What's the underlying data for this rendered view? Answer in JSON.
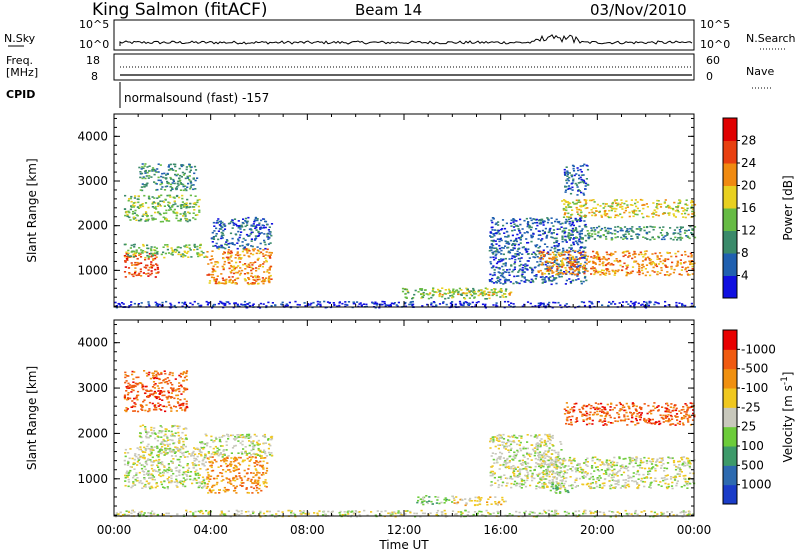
{
  "header": {
    "station": "King Salmon (fitACF)",
    "beam": "Beam 14",
    "date": "03/Nov/2010"
  },
  "noise_panel": {
    "left_label": "N.Sky",
    "right_label": "N.Search",
    "ticks": [
      "10^5",
      "10^0"
    ]
  },
  "freq_panel": {
    "left_label_1": "Freq.",
    "left_label_2": "[MHz]",
    "left_ticks": [
      "18",
      "8"
    ],
    "right_label": "Nave",
    "right_ticks": [
      "60",
      "0"
    ]
  },
  "cpid": {
    "label": "CPID",
    "program": "normalsound (fast) -157"
  },
  "chart_data": [
    {
      "type": "heatmap",
      "title": "",
      "ylabel": "Slant Range [km]",
      "ylim": [
        180,
        4500
      ],
      "yticks": [
        1000,
        2000,
        3000,
        4000
      ],
      "xlim": [
        0,
        24
      ],
      "colorbar_label": "Power [dB]",
      "colorbar_ticks": [
        "4",
        "8",
        "12",
        "16",
        "20",
        "24",
        "28"
      ],
      "colorbar_colors": [
        "#1010e0",
        "#2060b0",
        "#3a8a6a",
        "#66bb44",
        "#e8d020",
        "#f08a10",
        "#e84010",
        "#e00000"
      ],
      "scatter_regions": [
        {
          "t0": 0.4,
          "t1": 1.8,
          "r0": 850,
          "r1": 1400,
          "level": 6
        },
        {
          "t0": 0.4,
          "t1": 3.8,
          "r0": 1300,
          "r1": 1600,
          "level": 3
        },
        {
          "t0": 0.4,
          "t1": 3.5,
          "r0": 2100,
          "r1": 2700,
          "level": 3
        },
        {
          "t0": 1.0,
          "t1": 3.4,
          "r0": 2800,
          "r1": 3400,
          "level": 2
        },
        {
          "t0": 3.8,
          "t1": 6.5,
          "r0": 700,
          "r1": 1500,
          "level": 5
        },
        {
          "t0": 4.0,
          "t1": 6.5,
          "r0": 1500,
          "r1": 2200,
          "level": 1
        },
        {
          "t0": 11.8,
          "t1": 16.2,
          "r0": 380,
          "r1": 620,
          "level": 3
        },
        {
          "t0": 13.0,
          "t1": 16.5,
          "r0": 450,
          "r1": 560,
          "level": 4
        },
        {
          "t0": 15.5,
          "t1": 19.5,
          "r0": 700,
          "r1": 2200,
          "level": 1
        },
        {
          "t0": 17.5,
          "t1": 24.0,
          "r0": 900,
          "r1": 1450,
          "level": 5
        },
        {
          "t0": 18.5,
          "t1": 24.0,
          "r0": 1700,
          "r1": 2000,
          "level": 2
        },
        {
          "t0": 18.5,
          "t1": 24.0,
          "r0": 2200,
          "r1": 2600,
          "level": 4
        },
        {
          "t0": 18.6,
          "t1": 19.6,
          "r0": 2700,
          "r1": 3400,
          "level": 1
        },
        {
          "t0": 0.0,
          "t1": 24.0,
          "r0": 180,
          "r1": 320,
          "level": 0
        }
      ]
    },
    {
      "type": "heatmap",
      "title": "",
      "ylabel": "Slant Range [km]",
      "xlabel": "Time UT",
      "ylim": [
        180,
        4500
      ],
      "yticks": [
        1000,
        2000,
        3000,
        4000
      ],
      "xlim": [
        0,
        24
      ],
      "xtick_labels": [
        "00:00",
        "04:00",
        "08:00",
        "12:00",
        "16:00",
        "20:00",
        "00:00"
      ],
      "colorbar_label": "Velocity [m s^-1]",
      "colorbar_ticks": [
        "1000",
        "500",
        "100",
        "25",
        "-25",
        "-100",
        "-500",
        "-1000"
      ],
      "colorbar_colors": [
        "#1a3cc8",
        "#2d6ab0",
        "#3d9a6a",
        "#6ccc3a",
        "#c8c8bc",
        "#f0c820",
        "#f09010",
        "#f05a10",
        "#e80000"
      ],
      "scatter_regions": [
        {
          "t0": 0.4,
          "t1": 3.8,
          "r0": 800,
          "r1": 1700,
          "level": 4
        },
        {
          "t0": 0.4,
          "t1": 3.0,
          "r0": 2500,
          "r1": 3400,
          "level": 7
        },
        {
          "t0": 1.0,
          "t1": 3.0,
          "r0": 1600,
          "r1": 2200,
          "level": 4
        },
        {
          "t0": 3.8,
          "t1": 6.3,
          "r0": 700,
          "r1": 1500,
          "level": 6
        },
        {
          "t0": 3.5,
          "t1": 6.5,
          "r0": 1500,
          "r1": 2000,
          "level": 4
        },
        {
          "t0": 12.5,
          "t1": 14.0,
          "r0": 450,
          "r1": 650,
          "level": 3
        },
        {
          "t0": 14.0,
          "t1": 16.2,
          "r0": 430,
          "r1": 620,
          "level": 5
        },
        {
          "t0": 15.5,
          "t1": 18.5,
          "r0": 800,
          "r1": 2000,
          "level": 4
        },
        {
          "t0": 17.5,
          "t1": 24.0,
          "r0": 800,
          "r1": 1500,
          "level": 4
        },
        {
          "t0": 18.6,
          "t1": 24.0,
          "r0": 2200,
          "r1": 2700,
          "level": 7
        },
        {
          "t0": 18.0,
          "t1": 18.8,
          "r0": 700,
          "r1": 900,
          "level": 3
        },
        {
          "t0": 0.0,
          "t1": 24.0,
          "r0": 180,
          "r1": 320,
          "level": 4
        }
      ]
    }
  ]
}
